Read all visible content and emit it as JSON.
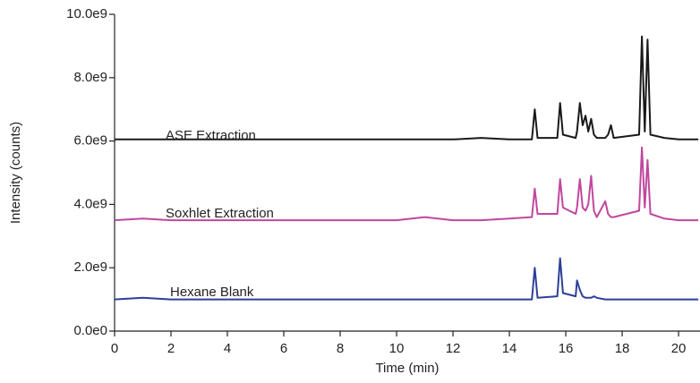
{
  "chart_data": {
    "type": "line",
    "xlabel": "Time (min)",
    "ylabel": "Intensity (counts)",
    "x": [
      0,
      1,
      2,
      3,
      4,
      5,
      6,
      7,
      8,
      9,
      10,
      11,
      12,
      13,
      14,
      14.8,
      14.9,
      15.0,
      15.7,
      15.8,
      15.9,
      16.35,
      16.4,
      16.5,
      16.6,
      16.7,
      16.8,
      16.9,
      17.0,
      17.1,
      17.4,
      17.5,
      17.6,
      17.7,
      18.6,
      18.7,
      18.8,
      18.9,
      19.0,
      19.5,
      20,
      20.7
    ],
    "series": [
      {
        "name": "ASE Extraction",
        "color": "#1a1a1a",
        "values": [
          6050000000.0,
          6050000000.0,
          6050000000.0,
          6050000000.0,
          6050000000.0,
          6050000000.0,
          6050000000.0,
          6050000000.0,
          6050000000.0,
          6050000000.0,
          6050000000.0,
          6050000000.0,
          6050000000.0,
          6100000000.0,
          6050000000.0,
          6050000000.0,
          7000000000.0,
          6100000000.0,
          6100000000.0,
          7200000000.0,
          6200000000.0,
          6100000000.0,
          6300000000.0,
          7200000000.0,
          6500000000.0,
          6800000000.0,
          6300000000.0,
          6700000000.0,
          6200000000.0,
          6100000000.0,
          6100000000.0,
          6200000000.0,
          6500000000.0,
          6100000000.0,
          6200000000.0,
          9300000000.0,
          6300000000.0,
          9200000000.0,
          6200000000.0,
          6100000000.0,
          6050000000.0,
          6050000000.0
        ]
      },
      {
        "name": "Soxhlet Extraction",
        "color": "#c0479e",
        "values": [
          3500000000.0,
          3550000000.0,
          3500000000.0,
          3500000000.0,
          3500000000.0,
          3500000000.0,
          3500000000.0,
          3500000000.0,
          3500000000.0,
          3500000000.0,
          3500000000.0,
          3600000000.0,
          3500000000.0,
          3500000000.0,
          3550000000.0,
          3600000000.0,
          4500000000.0,
          3700000000.0,
          3700000000.0,
          4800000000.0,
          3900000000.0,
          3700000000.0,
          3900000000.0,
          4800000000.0,
          3900000000.0,
          3800000000.0,
          4000000000.0,
          4900000000.0,
          3800000000.0,
          3600000000.0,
          4100000000.0,
          3700000000.0,
          3600000000.0,
          3600000000.0,
          3800000000.0,
          5800000000.0,
          3900000000.0,
          5400000000.0,
          3700000000.0,
          3550000000.0,
          3500000000.0,
          3500000000.0
        ]
      },
      {
        "name": "Hexane Blank",
        "color": "#2e3f98",
        "values": [
          1000000000.0,
          1050000000.0,
          1000000000.0,
          1000000000.0,
          1000000000.0,
          1000000000.0,
          1000000000.0,
          1000000000.0,
          1000000000.0,
          1000000000.0,
          1000000000.0,
          1000000000.0,
          1000000000.0,
          1000000000.0,
          1000000000.0,
          1000000000.0,
          2000000000.0,
          1050000000.0,
          1100000000.0,
          2300000000.0,
          1200000000.0,
          1100000000.0,
          1600000000.0,
          1300000000.0,
          1100000000.0,
          1050000000.0,
          1050000000.0,
          1050000000.0,
          1100000000.0,
          1050000000.0,
          1000000000.0,
          1000000000.0,
          1000000000.0,
          1000000000.0,
          1000000000.0,
          1000000000.0,
          1000000000.0,
          1000000000.0,
          1000000000.0,
          1000000000.0,
          1000000000.0,
          1000000000.0
        ]
      }
    ],
    "xlim": [
      0,
      20.76
    ],
    "xticks": [
      0,
      2,
      4,
      6,
      8,
      10,
      12,
      14,
      16,
      18,
      20
    ],
    "ylim": [
      0,
      10000000000.0
    ],
    "yticks": [
      {
        "value": 0,
        "label": "0.0e0"
      },
      {
        "value": 2000000000.0,
        "label": "2.0e9"
      },
      {
        "value": 4000000000.0,
        "label": "4.0e9"
      },
      {
        "value": 6000000000.0,
        "label": "6.0e9"
      },
      {
        "value": 8000000000.0,
        "label": "8.0e9"
      },
      {
        "value": 10000000000.0,
        "label": "10.0e9"
      }
    ]
  }
}
